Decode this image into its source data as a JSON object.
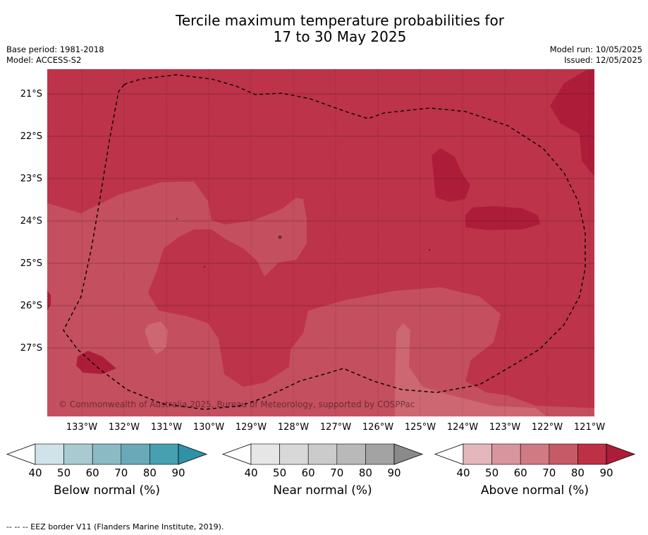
{
  "title_line1": "Tercile maximum temperature probabilities for",
  "title_line2": "17 to 30 May 2025",
  "base_period": "Base period: 1981-2018",
  "model": "Model: ACCESS-S2",
  "model_run": "Model run: 10/05/2025",
  "issued": "Issued: 12/05/2025",
  "copyright": "© Commonwealth of Australia 2025, Bureau of Meteorology, supported by COSPPac",
  "lat_labels": [
    "21°S",
    "22°S",
    "23°S",
    "24°S",
    "25°S",
    "26°S",
    "27°S"
  ],
  "lon_labels": [
    "133°W",
    "132°W",
    "131°W",
    "130°W",
    "129°W",
    "128°W",
    "127°W",
    "126°W",
    "125°W",
    "124°W",
    "123°W",
    "122°W",
    "121°W"
  ],
  "legends": [
    {
      "title": "Below normal (%)",
      "ticks": [
        "40",
        "50",
        "60",
        "70",
        "80",
        "90"
      ],
      "colors": [
        "#cfe3e8",
        "#a9cad1",
        "#8bbac5",
        "#6aaab8",
        "#46a0b0",
        "#2e93a6"
      ]
    },
    {
      "title": "Near normal (%)",
      "ticks": [
        "40",
        "50",
        "60",
        "70",
        "80",
        "90"
      ],
      "colors": [
        "#e6e6e6",
        "#d8d8d8",
        "#cbcbcb",
        "#b9b9b9",
        "#a3a3a3",
        "#8a8a8a"
      ]
    },
    {
      "title": "Above normal (%)",
      "ticks": [
        "40",
        "50",
        "60",
        "70",
        "80",
        "90"
      ],
      "colors": [
        "#e4b7bd",
        "#d9959e",
        "#d07a84",
        "#c65a66",
        "#bd3045",
        "#ad1d3a"
      ]
    }
  ],
  "footnote": "-- -- -- EEZ border V11 (Flanders Marine Institute, 2019)."
}
